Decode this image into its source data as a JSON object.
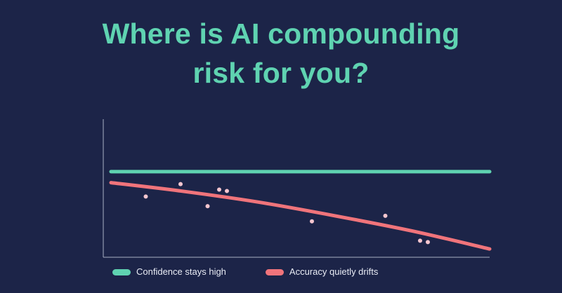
{
  "chart_data": {
    "type": "line",
    "title": "Where is AI compounding risk for you?",
    "title_lines": [
      "Where is AI compounding",
      "risk for you?"
    ],
    "xlabel": "",
    "ylabel": "",
    "xlim": [
      0,
      100
    ],
    "ylim": [
      0,
      100
    ],
    "grid": false,
    "legend_position": "bottom-left",
    "series": [
      {
        "name": "Confidence stays high",
        "color": "#5fd3b1",
        "style": "line",
        "x": [
          2,
          100
        ],
        "values": [
          62,
          62
        ]
      },
      {
        "name": "Accuracy quietly drifts",
        "color": "#f0747b",
        "style": "line",
        "x": [
          2,
          20,
          40,
          60,
          80,
          100
        ],
        "values": [
          54,
          48,
          40,
          30,
          19,
          6
        ]
      }
    ],
    "points": {
      "color": "#f6c6cf",
      "x": [
        11,
        20,
        27,
        30,
        32,
        54,
        73,
        82,
        84
      ],
      "values": [
        44,
        53,
        37,
        49,
        48,
        26,
        30,
        12,
        11
      ]
    }
  }
}
